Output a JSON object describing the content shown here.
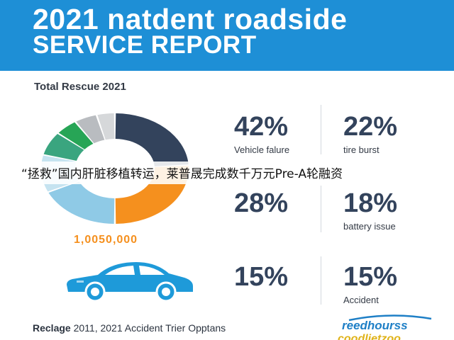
{
  "header": {
    "title_line1": "2021 natdent roadside",
    "title_line2": "SERVICE REPORT"
  },
  "chart_data": {
    "type": "pie",
    "title": "Total Rescue 2021",
    "total_label": "1,0050,000",
    "values": [
      24,
      26,
      18,
      11,
      7,
      5,
      5,
      4
    ],
    "colors": [
      "#33435c",
      "#f5901e",
      "#8fcae6",
      "#c5e3f0",
      "#3aa57f",
      "#27a556",
      "#b9bcc0",
      "#d6d8da"
    ]
  },
  "stats": [
    {
      "value": "42%",
      "label": "Vehicle falure"
    },
    {
      "value": "22%",
      "label": "tire burst"
    },
    {
      "value": "28%",
      "label": ""
    },
    {
      "value": "18%",
      "label": "battery issue"
    },
    {
      "value": "15%",
      "label": ""
    },
    {
      "value": "15%",
      "label": "Accident"
    }
  ],
  "banner": {
    "text": "“拯救”国内肝脏移植转运，莱普晟完成数千万元Pre-A轮融资"
  },
  "footer": {
    "bold": "Reclage",
    "rest": " 2011, 2021 Accident Trier Opptans"
  },
  "brand": {
    "line1": "reedhourss",
    "line2": "coodlietzoo"
  },
  "colors": {
    "header_bg": "#1e8fd6",
    "accent_orange": "#f5901e",
    "navy": "#33435c",
    "car_blue": "#1e9ad9"
  },
  "icons": {
    "car": "car-icon"
  }
}
